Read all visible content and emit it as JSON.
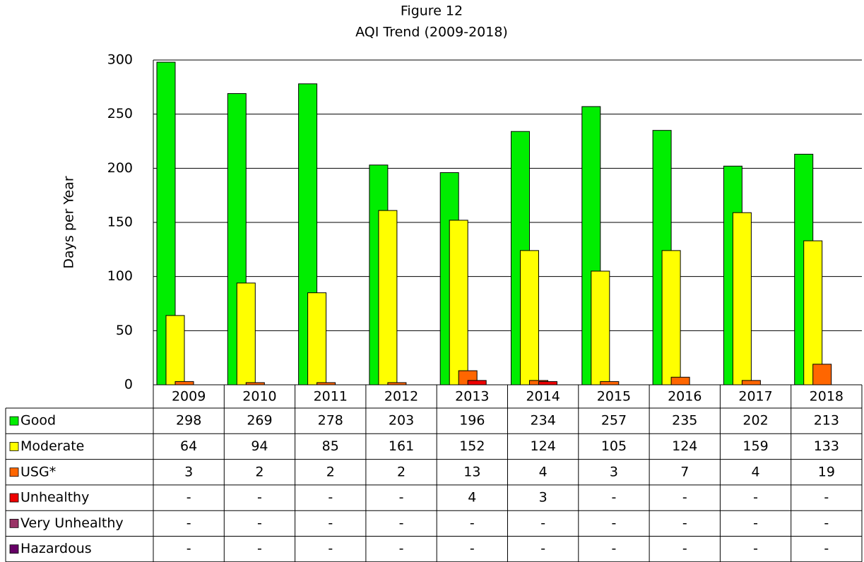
{
  "chart_data": {
    "type": "bar",
    "title": "Figure 12",
    "subtitle": "AQI Trend (2009-2018)",
    "y_label": "Days per Year",
    "categories": [
      "2009",
      "2010",
      "2011",
      "2012",
      "2013",
      "2014",
      "2015",
      "2016",
      "2017",
      "2018"
    ],
    "ylim": [
      0,
      300
    ],
    "yticks": [
      0,
      50,
      100,
      150,
      200,
      250,
      300
    ],
    "grid": true,
    "series": [
      {
        "name": "Good",
        "color": "#00ee00",
        "values": [
          298,
          269,
          278,
          203,
          196,
          234,
          257,
          235,
          202,
          213
        ]
      },
      {
        "name": "Moderate",
        "color": "#ffff00",
        "values": [
          64,
          94,
          85,
          161,
          152,
          124,
          105,
          124,
          159,
          133
        ]
      },
      {
        "name": "USG*",
        "color": "#ff6600",
        "values": [
          3,
          2,
          2,
          2,
          13,
          4,
          3,
          7,
          4,
          19
        ]
      },
      {
        "name": "Unhealthy",
        "color": "#ee0000",
        "values": [
          null,
          null,
          null,
          null,
          4,
          3,
          null,
          null,
          null,
          null
        ],
        "value_labels": [
          "-",
          "-",
          "-",
          "-",
          "4",
          "3",
          "-",
          "-",
          "-",
          "-"
        ]
      },
      {
        "name": "Very Unhealthy",
        "color": "#993366",
        "values": [
          null,
          null,
          null,
          null,
          null,
          null,
          null,
          null,
          null,
          null
        ],
        "value_labels": [
          "-",
          "-",
          "-",
          "-",
          "-",
          "-",
          "-",
          "-",
          "-",
          "-"
        ]
      },
      {
        "name": "Hazardous",
        "color": "#660066",
        "values": [
          null,
          null,
          null,
          null,
          null,
          null,
          null,
          null,
          null,
          null
        ],
        "value_labels": [
          "-",
          "-",
          "-",
          "-",
          "-",
          "-",
          "-",
          "-",
          "-",
          "-"
        ]
      }
    ]
  }
}
